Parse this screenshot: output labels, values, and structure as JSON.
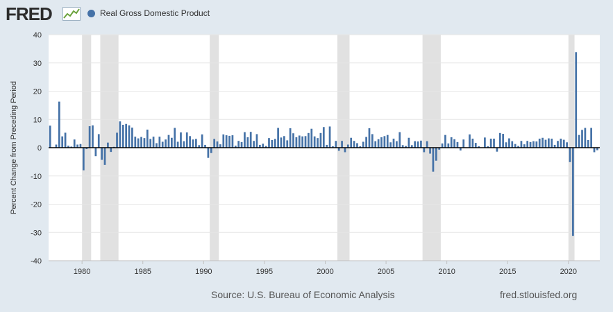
{
  "header": {
    "logo_text": "FRED",
    "logo_icon": "fred-graph-icon",
    "legend_label": "Real Gross Domestic Product"
  },
  "footer": {
    "source": "Source: U.S. Bureau of Economic Analysis",
    "site": "fred.stlouisfed.org"
  },
  "colors": {
    "series": "#4572a7",
    "recession": "#e1e1e1",
    "page_background": "#e1e9f0",
    "plot_background": "#ffffff",
    "zero_line": "#000000"
  },
  "chart_data": {
    "type": "bar",
    "title": "",
    "ylabel": "Percent Change from Preceding Period",
    "xlabel": "",
    "ylim": [
      -40,
      40
    ],
    "y_ticks": [
      40,
      30,
      20,
      10,
      0,
      -10,
      -20,
      -30,
      -40
    ],
    "x_ticks": [
      1980,
      1985,
      1990,
      1995,
      2000,
      2005,
      2010,
      2015,
      2020
    ],
    "grid": "horizontal",
    "legend_position": "top-left",
    "series": [
      {
        "name": "Real Gross Domestic Product",
        "quarters": [
          "1977Q2",
          "1977Q3",
          "1977Q4",
          "1978Q1",
          "1978Q2",
          "1978Q3",
          "1978Q4",
          "1979Q1",
          "1979Q2",
          "1979Q3",
          "1979Q4",
          "1980Q1",
          "1980Q2",
          "1980Q3",
          "1980Q4",
          "1981Q1",
          "1981Q2",
          "1981Q3",
          "1981Q4",
          "1982Q1",
          "1982Q2",
          "1982Q3",
          "1982Q4",
          "1983Q1",
          "1983Q2",
          "1983Q3",
          "1983Q4",
          "1984Q1",
          "1984Q2",
          "1984Q3",
          "1984Q4",
          "1985Q1",
          "1985Q2",
          "1985Q3",
          "1985Q4",
          "1986Q1",
          "1986Q2",
          "1986Q3",
          "1986Q4",
          "1987Q1",
          "1987Q2",
          "1987Q3",
          "1987Q4",
          "1988Q1",
          "1988Q2",
          "1988Q3",
          "1988Q4",
          "1989Q1",
          "1989Q2",
          "1989Q3",
          "1989Q4",
          "1990Q1",
          "1990Q2",
          "1990Q3",
          "1990Q4",
          "1991Q1",
          "1991Q2",
          "1991Q3",
          "1991Q4",
          "1992Q1",
          "1992Q2",
          "1992Q3",
          "1992Q4",
          "1993Q1",
          "1993Q2",
          "1993Q3",
          "1993Q4",
          "1994Q1",
          "1994Q2",
          "1994Q3",
          "1994Q4",
          "1995Q1",
          "1995Q2",
          "1995Q3",
          "1995Q4",
          "1996Q1",
          "1996Q2",
          "1996Q3",
          "1996Q4",
          "1997Q1",
          "1997Q2",
          "1997Q3",
          "1997Q4",
          "1998Q1",
          "1998Q2",
          "1998Q3",
          "1998Q4",
          "1999Q1",
          "1999Q2",
          "1999Q3",
          "1999Q4",
          "2000Q1",
          "2000Q2",
          "2000Q3",
          "2000Q4",
          "2001Q1",
          "2001Q2",
          "2001Q3",
          "2001Q4",
          "2002Q1",
          "2002Q2",
          "2002Q3",
          "2002Q4",
          "2003Q1",
          "2003Q2",
          "2003Q3",
          "2003Q4",
          "2004Q1",
          "2004Q2",
          "2004Q3",
          "2004Q4",
          "2005Q1",
          "2005Q2",
          "2005Q3",
          "2005Q4",
          "2006Q1",
          "2006Q2",
          "2006Q3",
          "2006Q4",
          "2007Q1",
          "2007Q2",
          "2007Q3",
          "2007Q4",
          "2008Q1",
          "2008Q2",
          "2008Q3",
          "2008Q4",
          "2009Q1",
          "2009Q2",
          "2009Q3",
          "2009Q4",
          "2010Q1",
          "2010Q2",
          "2010Q3",
          "2010Q4",
          "2011Q1",
          "2011Q2",
          "2011Q3",
          "2011Q4",
          "2012Q1",
          "2012Q2",
          "2012Q3",
          "2012Q4",
          "2013Q1",
          "2013Q2",
          "2013Q3",
          "2013Q4",
          "2014Q1",
          "2014Q2",
          "2014Q3",
          "2014Q4",
          "2015Q1",
          "2015Q2",
          "2015Q3",
          "2015Q4",
          "2016Q1",
          "2016Q2",
          "2016Q3",
          "2016Q4",
          "2017Q1",
          "2017Q2",
          "2017Q3",
          "2017Q4",
          "2018Q1",
          "2018Q2",
          "2018Q3",
          "2018Q4",
          "2019Q1",
          "2019Q2",
          "2019Q3",
          "2019Q4",
          "2020Q1",
          "2020Q2",
          "2020Q3",
          "2020Q4",
          "2021Q1",
          "2021Q2",
          "2021Q3",
          "2021Q4",
          "2022Q1",
          "2022Q2"
        ],
        "values": [
          7.8,
          0.1,
          1.1,
          16.3,
          4.0,
          5.3,
          0.7,
          0.4,
          2.9,
          1.1,
          1.3,
          -8.0,
          -0.5,
          7.6,
          7.9,
          -3.0,
          4.8,
          -4.3,
          -6.1,
          1.8,
          -1.5,
          0.3,
          5.3,
          9.3,
          8.1,
          8.4,
          7.9,
          7.1,
          3.9,
          3.3,
          3.8,
          3.4,
          6.4,
          3.1,
          3.9,
          1.6,
          3.9,
          2.1,
          2.9,
          4.5,
          3.5,
          7.0,
          2.1,
          5.4,
          2.3,
          5.4,
          4.1,
          2.9,
          3.1,
          0.9,
          4.7,
          1.0,
          -3.6,
          -1.9,
          3.1,
          2.2,
          1.2,
          4.7,
          4.4,
          4.2,
          4.4,
          0.7,
          2.4,
          2.0,
          5.5,
          3.7,
          5.6,
          2.4,
          4.8,
          1.0,
          1.4,
          0.6,
          3.4,
          2.7,
          3.1,
          7.0,
          3.6,
          4.1,
          2.6,
          6.9,
          5.1,
          3.7,
          4.3,
          4.0,
          4.1,
          5.2,
          6.7,
          4.0,
          3.4,
          5.2,
          7.3,
          1.0,
          7.5,
          0.5,
          2.4,
          -1.1,
          2.4,
          -1.6,
          1.1,
          3.5,
          2.4,
          1.6,
          0.5,
          2.1,
          3.8,
          6.9,
          4.8,
          2.3,
          3.0,
          3.7,
          4.1,
          4.5,
          1.9,
          3.2,
          2.3,
          5.5,
          0.9,
          0.6,
          3.5,
          0.9,
          2.3,
          2.2,
          2.5,
          -1.6,
          2.3,
          -2.1,
          -8.5,
          -4.6,
          -0.7,
          1.5,
          4.5,
          1.5,
          3.7,
          3.0,
          2.0,
          -1.0,
          2.9,
          -0.1,
          4.7,
          3.2,
          1.7,
          0.5,
          0.1,
          3.6,
          0.5,
          3.2,
          3.2,
          -1.4,
          5.2,
          4.9,
          1.9,
          3.3,
          2.3,
          1.3,
          0.6,
          2.4,
          1.2,
          2.4,
          2.0,
          2.3,
          2.2,
          3.2,
          3.5,
          2.8,
          3.3,
          3.2,
          1.0,
          2.4,
          3.2,
          2.8,
          1.9,
          -5.1,
          -31.2,
          33.8,
          4.5,
          6.3,
          7.0,
          2.7,
          7.0,
          -1.6,
          -0.9
        ]
      }
    ],
    "recessions": [
      [
        "1980Q1",
        "1980Q3"
      ],
      [
        "1981Q3",
        "1982Q4"
      ],
      [
        "1990Q3",
        "1991Q1"
      ],
      [
        "2001Q1",
        "2001Q4"
      ],
      [
        "2008Q1",
        "2009Q2"
      ],
      [
        "2020Q1",
        "2020Q2"
      ]
    ]
  }
}
